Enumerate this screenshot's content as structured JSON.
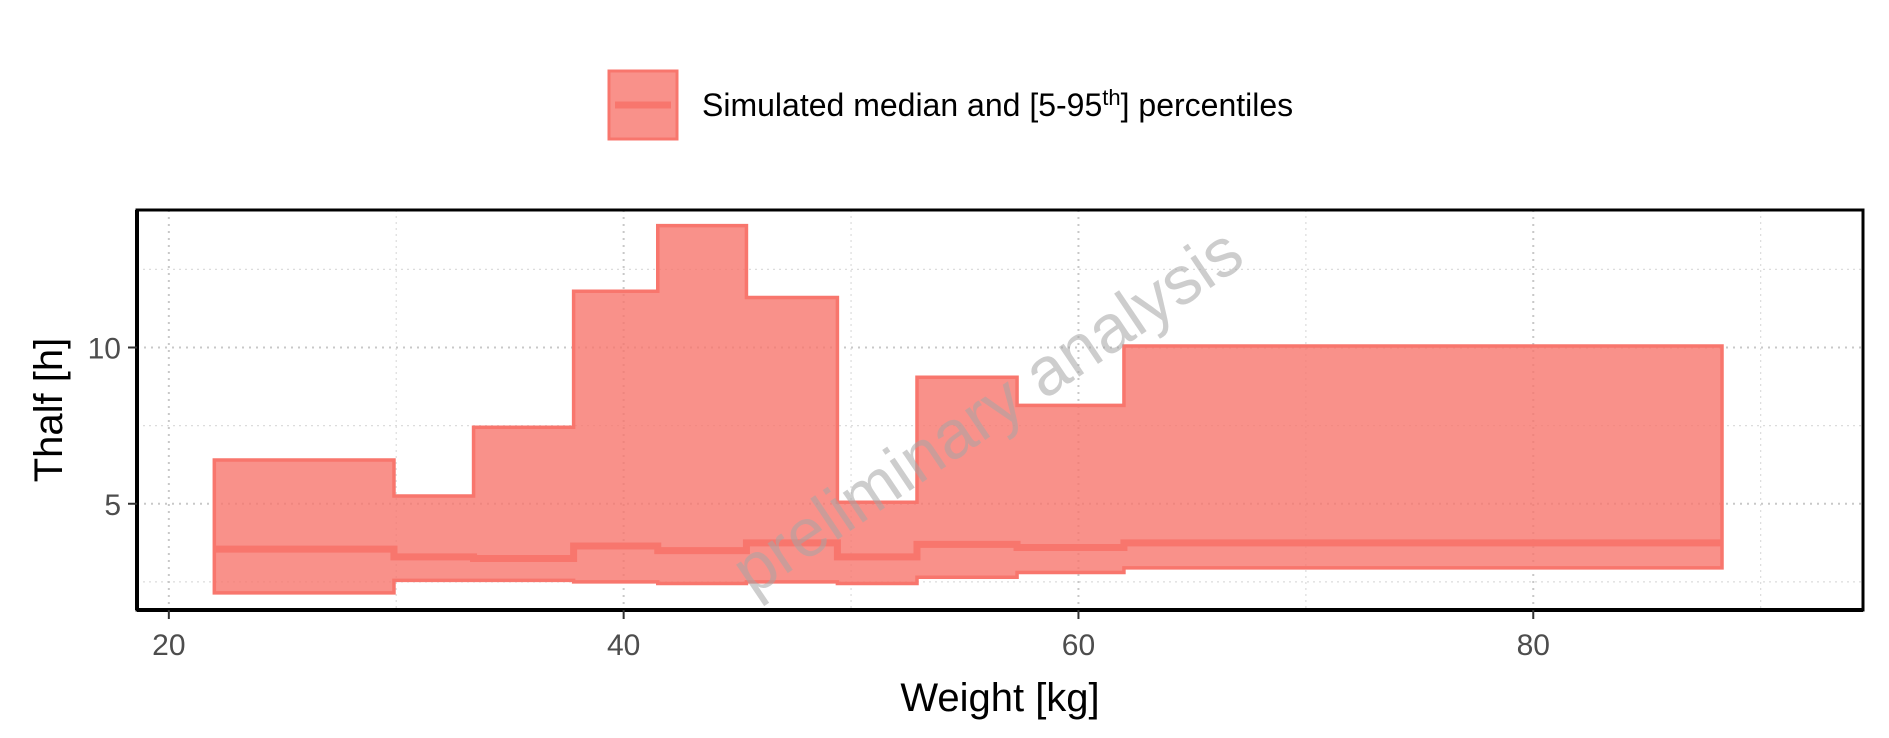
{
  "chart_data": {
    "type": "area",
    "xlabel": "Weight [kg]",
    "ylabel": "Thalf [h]",
    "xlim": [
      18.6,
      94.5
    ],
    "ylim": [
      1.6,
      14.4
    ],
    "x_ticks": [
      20,
      40,
      60,
      80
    ],
    "y_ticks": [
      5,
      10
    ],
    "x_minor_ticks": [
      30,
      50,
      70,
      90
    ],
    "y_minor_ticks": [
      2.5,
      7.5,
      12.5
    ],
    "grid": true,
    "legend_position": "top",
    "legend": {
      "label_pre": "Simulated median and [5-95",
      "label_sup": "th",
      "label_post": "] percentiles"
    },
    "watermark": "preliminary analysis",
    "fill_color": "#F8766D",
    "bins": [
      {
        "x0": 22.0,
        "x1": 29.9,
        "p05": 2.15,
        "median": 3.55,
        "p95": 6.4
      },
      {
        "x0": 29.9,
        "x1": 33.4,
        "p05": 2.55,
        "median": 3.3,
        "p95": 5.25
      },
      {
        "x0": 33.4,
        "x1": 37.8,
        "p05": 2.55,
        "median": 3.25,
        "p95": 7.45
      },
      {
        "x0": 37.8,
        "x1": 41.5,
        "p05": 2.5,
        "median": 3.65,
        "p95": 11.8
      },
      {
        "x0": 41.5,
        "x1": 45.4,
        "p05": 2.45,
        "median": 3.5,
        "p95": 13.9
      },
      {
        "x0": 45.4,
        "x1": 49.4,
        "p05": 2.5,
        "median": 3.75,
        "p95": 11.6
      },
      {
        "x0": 49.4,
        "x1": 52.9,
        "p05": 2.45,
        "median": 3.3,
        "p95": 5.05
      },
      {
        "x0": 52.9,
        "x1": 57.3,
        "p05": 2.65,
        "median": 3.7,
        "p95": 9.05
      },
      {
        "x0": 57.3,
        "x1": 62.0,
        "p05": 2.8,
        "median": 3.6,
        "p95": 8.15
      },
      {
        "x0": 62.0,
        "x1": 88.3,
        "p05": 2.95,
        "median": 3.75,
        "p95": 10.05
      }
    ]
  }
}
